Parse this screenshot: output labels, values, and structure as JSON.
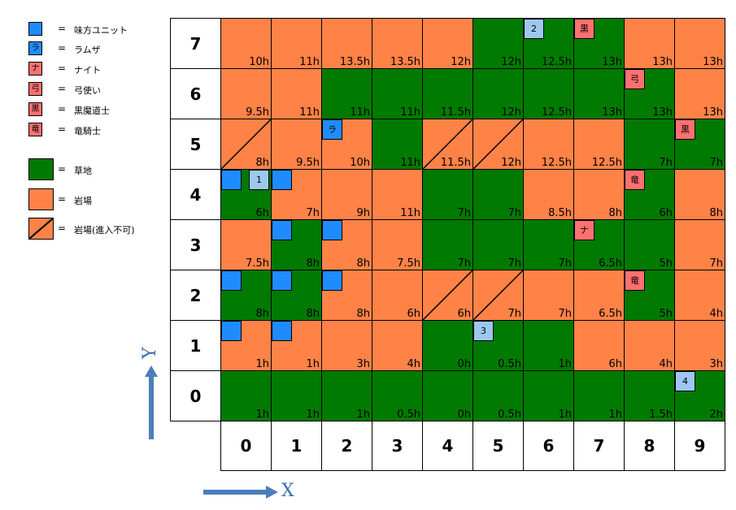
{
  "legend": [
    {
      "swatch": "",
      "label": "味方ユニット",
      "color": "#1e8cff",
      "kind": "small"
    },
    {
      "swatch": "ラ",
      "label": "ラムザ",
      "color": "#1e8cff",
      "kind": "small"
    },
    {
      "swatch": "ナ",
      "label": "ナイト",
      "color": "#ff7070",
      "kind": "small"
    },
    {
      "swatch": "弓",
      "label": "弓使い",
      "color": "#ff7070",
      "kind": "small"
    },
    {
      "swatch": "黒",
      "label": "黒魔道士",
      "color": "#ff7070",
      "kind": "small"
    },
    {
      "swatch": "竜",
      "label": "竜騎士",
      "color": "#ff7070",
      "kind": "small"
    },
    {
      "swatch": "",
      "label": "草地",
      "color": "#007a00",
      "kind": "big"
    },
    {
      "swatch": "",
      "label": "岩場",
      "color": "#ff8247",
      "kind": "big"
    },
    {
      "swatch": "",
      "label": "岩場(進入不可)",
      "color": "#ff8247",
      "kind": "big-diag"
    }
  ],
  "equals_sign": "=",
  "colors": {
    "rock": "#ff8247",
    "grass": "#007a00",
    "ally": "#1e8cff",
    "ally_light": "#9cc8f0",
    "enemy": "#ff7070",
    "arrow": "#4a7ebb"
  },
  "row_labels": [
    "7",
    "6",
    "5",
    "4",
    "3",
    "2",
    "1",
    "0"
  ],
  "col_labels": [
    "0",
    "1",
    "2",
    "3",
    "4",
    "5",
    "6",
    "7",
    "8",
    "9"
  ],
  "axes": {
    "x": "X",
    "y": "Y"
  },
  "grid": [
    [
      {
        "t": "R",
        "v": "10h"
      },
      {
        "t": "R",
        "v": "11h"
      },
      {
        "t": "R",
        "v": "13.5h"
      },
      {
        "t": "R",
        "v": "13.5h"
      },
      {
        "t": "R",
        "v": "12h"
      },
      {
        "t": "G",
        "v": "12h"
      },
      {
        "t": "G",
        "v": "12.5h"
      },
      {
        "t": "G",
        "v": "13h"
      },
      {
        "t": "R",
        "v": "13h"
      },
      {
        "t": "R",
        "v": "13h"
      }
    ],
    [
      {
        "t": "R",
        "v": "9.5h"
      },
      {
        "t": "R",
        "v": "11h"
      },
      {
        "t": "G",
        "v": "11h"
      },
      {
        "t": "G",
        "v": "11h"
      },
      {
        "t": "G",
        "v": "11.5h"
      },
      {
        "t": "G",
        "v": "12h"
      },
      {
        "t": "G",
        "v": "12.5h"
      },
      {
        "t": "G",
        "v": "13h"
      },
      {
        "t": "G",
        "v": "13h"
      },
      {
        "t": "R",
        "v": "13h"
      }
    ],
    [
      {
        "t": "X",
        "v": "8h"
      },
      {
        "t": "R",
        "v": "9.5h"
      },
      {
        "t": "R",
        "v": "10h"
      },
      {
        "t": "G",
        "v": "11h"
      },
      {
        "t": "X",
        "v": "11.5h"
      },
      {
        "t": "X",
        "v": "12h"
      },
      {
        "t": "R",
        "v": "12.5h"
      },
      {
        "t": "R",
        "v": "12.5h"
      },
      {
        "t": "G",
        "v": "7h"
      },
      {
        "t": "G",
        "v": "7h"
      }
    ],
    [
      {
        "t": "G",
        "v": "6h"
      },
      {
        "t": "R",
        "v": "7h"
      },
      {
        "t": "R",
        "v": "9h"
      },
      {
        "t": "R",
        "v": "11h"
      },
      {
        "t": "G",
        "v": "7h"
      },
      {
        "t": "G",
        "v": "7h"
      },
      {
        "t": "R",
        "v": "8.5h"
      },
      {
        "t": "R",
        "v": "8h"
      },
      {
        "t": "G",
        "v": "6h"
      },
      {
        "t": "R",
        "v": "8h"
      }
    ],
    [
      {
        "t": "R",
        "v": "7.5h"
      },
      {
        "t": "G",
        "v": "8h"
      },
      {
        "t": "R",
        "v": "8h"
      },
      {
        "t": "R",
        "v": "7.5h"
      },
      {
        "t": "G",
        "v": "7h"
      },
      {
        "t": "G",
        "v": "7h"
      },
      {
        "t": "G",
        "v": "7h"
      },
      {
        "t": "G",
        "v": "6.5h"
      },
      {
        "t": "G",
        "v": "5h"
      },
      {
        "t": "R",
        "v": "7h"
      }
    ],
    [
      {
        "t": "G",
        "v": "8h"
      },
      {
        "t": "G",
        "v": "8h"
      },
      {
        "t": "R",
        "v": "8h"
      },
      {
        "t": "R",
        "v": "6h"
      },
      {
        "t": "X",
        "v": "6h"
      },
      {
        "t": "X",
        "v": "7h"
      },
      {
        "t": "R",
        "v": "7h"
      },
      {
        "t": "R",
        "v": "6.5h"
      },
      {
        "t": "G",
        "v": "5h"
      },
      {
        "t": "R",
        "v": "4h"
      }
    ],
    [
      {
        "t": "R",
        "v": "1h"
      },
      {
        "t": "R",
        "v": "1h"
      },
      {
        "t": "R",
        "v": "3h"
      },
      {
        "t": "R",
        "v": "4h"
      },
      {
        "t": "G",
        "v": "0h"
      },
      {
        "t": "G",
        "v": "0.5h"
      },
      {
        "t": "G",
        "v": "1h"
      },
      {
        "t": "R",
        "v": "6h"
      },
      {
        "t": "R",
        "v": "4h"
      },
      {
        "t": "R",
        "v": "3h"
      }
    ],
    [
      {
        "t": "G",
        "v": "1h"
      },
      {
        "t": "G",
        "v": "1h"
      },
      {
        "t": "G",
        "v": "1h"
      },
      {
        "t": "G",
        "v": "0.5h"
      },
      {
        "t": "G",
        "v": "0h"
      },
      {
        "t": "G",
        "v": "0.5h"
      },
      {
        "t": "G",
        "v": "1h"
      },
      {
        "t": "G",
        "v": "1h"
      },
      {
        "t": "G",
        "v": "1.5h"
      },
      {
        "t": "G",
        "v": "2h"
      }
    ]
  ],
  "units": [
    {
      "row": 0,
      "col": 6,
      "slot": 0,
      "label": "2",
      "kind": "ally_light"
    },
    {
      "row": 0,
      "col": 7,
      "slot": 0,
      "label": "黒",
      "kind": "enemy"
    },
    {
      "row": 1,
      "col": 8,
      "slot": 0,
      "label": "弓",
      "kind": "enemy"
    },
    {
      "row": 2,
      "col": 2,
      "slot": 0,
      "label": "ラ",
      "kind": "ally"
    },
    {
      "row": 2,
      "col": 9,
      "slot": 0,
      "label": "黒",
      "kind": "enemy"
    },
    {
      "row": 3,
      "col": 0,
      "slot": 0,
      "label": "",
      "kind": "ally"
    },
    {
      "row": 3,
      "col": 0,
      "slot": 1,
      "label": "1",
      "kind": "ally_light"
    },
    {
      "row": 3,
      "col": 1,
      "slot": 0,
      "label": "",
      "kind": "ally"
    },
    {
      "row": 3,
      "col": 8,
      "slot": 0,
      "label": "竜",
      "kind": "enemy"
    },
    {
      "row": 4,
      "col": 1,
      "slot": 0,
      "label": "",
      "kind": "ally"
    },
    {
      "row": 4,
      "col": 2,
      "slot": 0,
      "label": "",
      "kind": "ally"
    },
    {
      "row": 4,
      "col": 7,
      "slot": 0,
      "label": "ナ",
      "kind": "enemy"
    },
    {
      "row": 5,
      "col": 0,
      "slot": 0,
      "label": "",
      "kind": "ally"
    },
    {
      "row": 5,
      "col": 1,
      "slot": 0,
      "label": "",
      "kind": "ally"
    },
    {
      "row": 5,
      "col": 2,
      "slot": 0,
      "label": "",
      "kind": "ally"
    },
    {
      "row": 5,
      "col": 8,
      "slot": 0,
      "label": "竜",
      "kind": "enemy"
    },
    {
      "row": 6,
      "col": 0,
      "slot": 0,
      "label": "",
      "kind": "ally"
    },
    {
      "row": 6,
      "col": 1,
      "slot": 0,
      "label": "",
      "kind": "ally"
    },
    {
      "row": 6,
      "col": 5,
      "slot": 0,
      "label": "3",
      "kind": "ally_light"
    },
    {
      "row": 7,
      "col": 9,
      "slot": 0,
      "label": "4",
      "kind": "ally_light"
    }
  ]
}
